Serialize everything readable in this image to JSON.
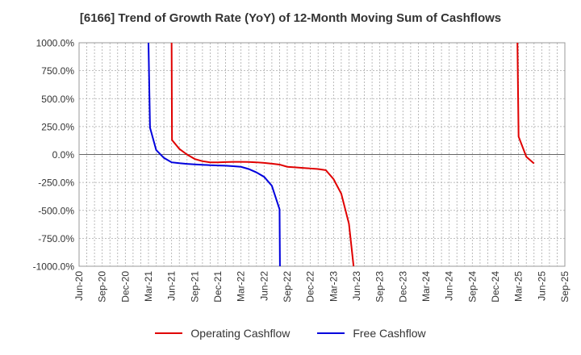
{
  "chart_data": {
    "type": "line",
    "title": "[6166]  Trend of Growth Rate (YoY) of 12-Month Moving Sum of Cashflows",
    "xlabel": "",
    "ylabel": "",
    "x_ticks": [
      "Jun-20",
      "Sep-20",
      "Dec-20",
      "Mar-21",
      "Jun-21",
      "Sep-21",
      "Dec-21",
      "Mar-22",
      "Jun-22",
      "Sep-22",
      "Dec-22",
      "Mar-23",
      "Jun-23",
      "Sep-23",
      "Dec-23",
      "Mar-24",
      "Jun-24",
      "Sep-24",
      "Dec-24",
      "Mar-25",
      "Jun-25",
      "Sep-25"
    ],
    "y_ticks": [
      "1000.0%",
      "750.0%",
      "500.0%",
      "250.0%",
      "0.0%",
      "-250.0%",
      "-500.0%",
      "-750.0%",
      "-1000.0%"
    ],
    "ylim": [
      -1000,
      1000
    ],
    "grid": true,
    "legend_position": "bottom",
    "series": [
      {
        "name": "Operating Cashflow",
        "color": "#e00000",
        "points": [
          [
            12.0,
            1000
          ],
          [
            12.05,
            130
          ],
          [
            13,
            50
          ],
          [
            14,
            0
          ],
          [
            15,
            -40
          ],
          [
            16,
            -60
          ],
          [
            17,
            -70
          ],
          [
            18,
            -70
          ],
          [
            19,
            -68
          ],
          [
            20,
            -66
          ],
          [
            21,
            -66
          ],
          [
            22,
            -67
          ],
          [
            23,
            -70
          ],
          [
            24,
            -75
          ],
          [
            25,
            -82
          ],
          [
            26,
            -90
          ],
          [
            27,
            -110
          ],
          [
            28,
            -115
          ],
          [
            29,
            -120
          ],
          [
            30,
            -125
          ],
          [
            31,
            -130
          ],
          [
            32,
            -140
          ],
          [
            33,
            -220
          ],
          [
            34,
            -350
          ],
          [
            35,
            -620
          ],
          [
            35.6,
            -1000
          ],
          [
            56.85,
            1000
          ],
          [
            57.0,
            160
          ],
          [
            58,
            -20
          ],
          [
            59,
            -80
          ]
        ]
      },
      {
        "name": "Free Cashflow",
        "color": "#0000dd",
        "points": [
          [
            9.0,
            1000
          ],
          [
            9.2,
            240
          ],
          [
            10,
            40
          ],
          [
            11,
            -30
          ],
          [
            12,
            -70
          ],
          [
            13,
            -78
          ],
          [
            14,
            -84
          ],
          [
            15,
            -88
          ],
          [
            16,
            -92
          ],
          [
            17,
            -96
          ],
          [
            18,
            -98
          ],
          [
            19,
            -100
          ],
          [
            20,
            -105
          ],
          [
            21,
            -110
          ],
          [
            22,
            -130
          ],
          [
            23,
            -160
          ],
          [
            24,
            -200
          ],
          [
            25,
            -280
          ],
          [
            26,
            -490
          ],
          [
            26.05,
            -1000
          ]
        ]
      }
    ]
  }
}
